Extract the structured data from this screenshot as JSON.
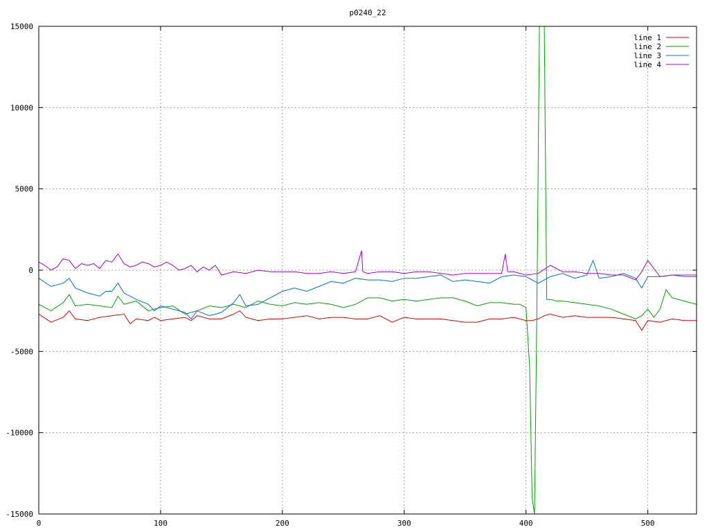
{
  "chart_data": {
    "type": "line",
    "title": "p0240_22",
    "xlabel": "",
    "ylabel": "",
    "xlim": [
      0,
      540
    ],
    "ylim": [
      -15000,
      15000
    ],
    "x_ticks": [
      0,
      100,
      200,
      300,
      400,
      500
    ],
    "y_ticks": [
      -15000,
      -10000,
      -5000,
      0,
      5000,
      10000,
      15000
    ],
    "grid": true,
    "legend_position": "top-right",
    "series": [
      {
        "name": "line 1",
        "color": "#e00000",
        "x": [
          0,
          10,
          20,
          25,
          30,
          40,
          50,
          60,
          70,
          75,
          80,
          90,
          95,
          100,
          110,
          120,
          125,
          130,
          140,
          150,
          160,
          165,
          170,
          180,
          190,
          200,
          210,
          220,
          230,
          240,
          250,
          260,
          270,
          280,
          290,
          300,
          310,
          320,
          330,
          340,
          350,
          360,
          370,
          380,
          390,
          400,
          405,
          410,
          415,
          420,
          430,
          440,
          450,
          460,
          470,
          480,
          490,
          495,
          500,
          510,
          520,
          530,
          540
        ],
        "y": [
          -2700,
          -3200,
          -2900,
          -2500,
          -3000,
          -3100,
          -2900,
          -2800,
          -2700,
          -3300,
          -3000,
          -3100,
          -2900,
          -3100,
          -3000,
          -2900,
          -3100,
          -2800,
          -3000,
          -3000,
          -2700,
          -2500,
          -2900,
          -3100,
          -3000,
          -3000,
          -2900,
          -2800,
          -3000,
          -2900,
          -2900,
          -3000,
          -3000,
          -2800,
          -3200,
          -2900,
          -3000,
          -3000,
          -3000,
          -3100,
          -3200,
          -3200,
          -3000,
          -3000,
          -2900,
          -3100,
          -3100,
          -3000,
          -2800,
          -2700,
          -2900,
          -2800,
          -2900,
          -2900,
          -2900,
          -3000,
          -3100,
          -3700,
          -3100,
          -3200,
          -3000,
          -3100,
          -3100
        ]
      },
      {
        "name": "line 2",
        "color": "#00a000",
        "x": [
          0,
          10,
          20,
          25,
          30,
          40,
          50,
          60,
          65,
          70,
          80,
          90,
          100,
          110,
          120,
          130,
          140,
          150,
          160,
          170,
          180,
          190,
          200,
          210,
          220,
          230,
          240,
          250,
          260,
          270,
          280,
          290,
          300,
          310,
          320,
          330,
          340,
          350,
          360,
          370,
          380,
          390,
          395,
          400,
          403,
          405,
          407,
          409,
          411,
          413,
          415,
          417,
          418,
          420,
          425,
          430,
          440,
          450,
          460,
          470,
          480,
          490,
          495,
          500,
          505,
          510,
          515,
          520,
          530,
          540
        ],
        "y": [
          -2100,
          -2500,
          -2000,
          -1500,
          -2200,
          -2100,
          -2200,
          -2300,
          -1600,
          -2100,
          -1900,
          -2500,
          -2300,
          -2200,
          -2700,
          -2500,
          -2200,
          -2300,
          -2100,
          -2300,
          -1900,
          -2100,
          -2200,
          -2000,
          -2100,
          -2000,
          -2100,
          -2300,
          -2100,
          -1700,
          -1700,
          -1900,
          -1800,
          -1900,
          -1800,
          -1700,
          -1700,
          -1900,
          -2200,
          -2000,
          -2000,
          -2100,
          -2100,
          -2300,
          -6000,
          -14000,
          -15000,
          -2000,
          15000,
          15000,
          15000,
          -1800,
          -1800,
          -1800,
          -1900,
          -1900,
          -2000,
          -2100,
          -2200,
          -2400,
          -2700,
          -3000,
          -2800,
          -2400,
          -2900,
          -2400,
          -1200,
          -1700,
          -1900,
          -2100
        ]
      },
      {
        "name": "line 3",
        "color": "#0070d0",
        "x": [
          0,
          10,
          20,
          25,
          30,
          40,
          50,
          55,
          60,
          65,
          70,
          80,
          90,
          95,
          100,
          110,
          120,
          125,
          130,
          140,
          150,
          160,
          165,
          170,
          180,
          190,
          200,
          210,
          220,
          230,
          240,
          250,
          260,
          270,
          280,
          290,
          300,
          310,
          320,
          330,
          340,
          350,
          360,
          370,
          380,
          390,
          400,
          410,
          420,
          430,
          440,
          450,
          455,
          460,
          470,
          480,
          490,
          495,
          500,
          510,
          520,
          530,
          540
        ],
        "y": [
          -500,
          -1000,
          -800,
          -500,
          -1100,
          -1400,
          -1600,
          -1300,
          -1300,
          -800,
          -1400,
          -1800,
          -2100,
          -2500,
          -2200,
          -2400,
          -2600,
          -3000,
          -2500,
          -2800,
          -2600,
          -2000,
          -1500,
          -2200,
          -2100,
          -1700,
          -1300,
          -1100,
          -1300,
          -1000,
          -700,
          -800,
          -500,
          -600,
          -600,
          -700,
          -500,
          -500,
          -400,
          -300,
          -700,
          -600,
          -700,
          -800,
          -400,
          -300,
          -400,
          -800,
          -400,
          -200,
          -500,
          -300,
          600,
          -500,
          -400,
          -200,
          -500,
          -1100,
          -400,
          -400,
          -300,
          -400,
          -400
        ]
      },
      {
        "name": "line 4",
        "color": "#a000d0",
        "x": [
          0,
          5,
          10,
          15,
          20,
          25,
          30,
          35,
          40,
          45,
          50,
          55,
          60,
          65,
          70,
          75,
          80,
          85,
          90,
          95,
          100,
          105,
          110,
          115,
          120,
          125,
          130,
          135,
          140,
          145,
          150,
          160,
          170,
          180,
          190,
          200,
          210,
          220,
          230,
          240,
          250,
          260,
          265,
          266,
          270,
          280,
          290,
          300,
          310,
          320,
          330,
          340,
          350,
          360,
          370,
          380,
          383,
          385,
          390,
          400,
          410,
          420,
          430,
          440,
          450,
          460,
          470,
          480,
          490,
          495,
          500,
          510,
          520,
          530,
          540
        ],
        "y": [
          500,
          300,
          0,
          200,
          700,
          600,
          100,
          400,
          300,
          400,
          100,
          600,
          500,
          1000,
          400,
          200,
          300,
          500,
          400,
          200,
          300,
          500,
          300,
          0,
          100,
          300,
          -100,
          200,
          0,
          300,
          -300,
          -100,
          -200,
          0,
          -100,
          -100,
          -100,
          -200,
          -200,
          -100,
          -200,
          -100,
          1200,
          -100,
          -200,
          -100,
          -100,
          -200,
          -100,
          -100,
          -200,
          -300,
          -200,
          -200,
          -200,
          -200,
          1000,
          -100,
          -100,
          -300,
          -200,
          300,
          -100,
          -100,
          -200,
          -200,
          -300,
          -300,
          -600,
          -100,
          600,
          -400,
          -300,
          -300,
          -300
        ]
      }
    ]
  }
}
